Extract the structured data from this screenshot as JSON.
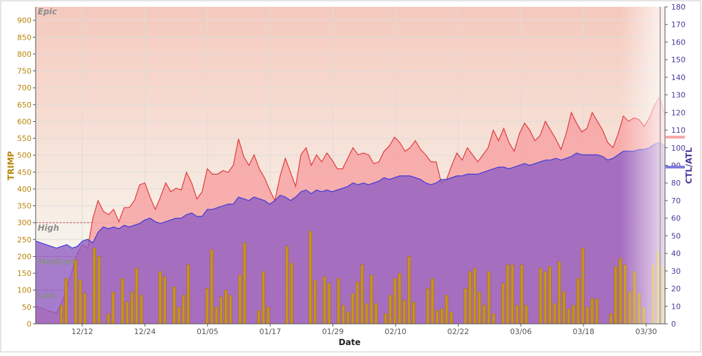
{
  "chart_data": {
    "type": "area",
    "xlabel": "Date",
    "ylabel_left": "TRIMP",
    "ylabel_right": "CTL/ATL",
    "ylim_left": [
      0,
      940
    ],
    "ylim_right": [
      0,
      180
    ],
    "yticks_left": [
      "0",
      "50",
      "100",
      "150",
      "200",
      "250",
      "300",
      "350",
      "400",
      "450",
      "500",
      "550",
      "600",
      "650",
      "700",
      "750",
      "800",
      "850",
      "900"
    ],
    "yticks_right": [
      "0",
      "10",
      "20",
      "30",
      "40",
      "50",
      "60",
      "70",
      "80",
      "90",
      "100",
      "110",
      "120",
      "130",
      "140",
      "150",
      "160",
      "170",
      "180"
    ],
    "x_ticks": [
      "12/12",
      "12/24",
      "01/05",
      "01/17",
      "01/29",
      "02/10",
      "02/22",
      "03/06",
      "03/18",
      "03/30"
    ],
    "grid": true,
    "zones": [
      {
        "label": "Epic",
        "value": 940
      },
      {
        "label": "High",
        "value": 300
      },
      {
        "label": "Medium",
        "value": 200
      },
      {
        "label": "Low",
        "value": 100
      }
    ],
    "right_axis_markers": [
      106,
      89
    ],
    "colors": {
      "atl_fill": "#f7a3a3",
      "atl_line": "#e03a3a",
      "ctl_fill": "#8f5cc4",
      "ctl_line": "#3a3ad8",
      "bar": "#c9931d",
      "bar_edge": "#9a6a08",
      "axis_left": "#b8860b",
      "axis_right": "#4b3b9b",
      "zone_line": "#d94b4b"
    },
    "series": [
      {
        "name": "ATL",
        "axis": "right",
        "values": [
          10,
          9,
          8,
          7,
          6,
          12,
          20,
          30,
          40,
          45,
          43,
          60,
          70,
          64,
          62,
          65,
          58,
          66,
          66,
          70,
          79,
          80,
          72,
          65,
          72,
          80,
          75,
          77,
          76,
          86,
          80,
          71,
          75,
          88,
          85,
          85,
          87,
          86,
          90,
          105,
          95,
          90,
          96,
          88,
          83,
          76,
          70,
          84,
          94,
          86,
          78,
          96,
          100,
          90,
          96,
          92,
          97,
          93,
          88,
          88,
          94,
          100,
          96,
          97,
          96,
          91,
          92,
          98,
          101,
          106,
          103,
          98,
          100,
          104,
          99,
          96,
          92,
          92,
          80,
          82,
          90,
          97,
          93,
          100,
          96,
          92,
          96,
          100,
          110,
          104,
          111,
          103,
          98,
          108,
          114,
          110,
          104,
          107,
          115,
          110,
          105,
          99,
          108,
          120,
          114,
          109,
          111,
          120,
          115,
          110,
          103,
          100,
          108,
          118,
          115,
          117,
          116,
          112,
          117,
          124,
          129,
          118
        ]
      },
      {
        "name": "CTL",
        "axis": "right",
        "values": [
          47,
          46,
          45,
          44,
          43,
          44,
          45,
          43,
          44,
          47,
          48,
          46,
          52,
          55,
          54,
          55,
          54,
          56,
          55,
          56,
          57,
          59,
          60,
          58,
          57,
          58,
          59,
          60,
          60,
          62,
          63,
          61,
          61,
          65,
          65,
          66,
          67,
          68,
          68,
          72,
          71,
          70,
          72,
          71,
          70,
          68,
          70,
          73,
          72,
          70,
          72,
          75,
          76,
          74,
          76,
          75,
          76,
          75,
          76,
          77,
          78,
          80,
          79,
          80,
          79,
          80,
          81,
          83,
          82,
          83,
          84,
          84,
          84,
          83,
          82,
          80,
          79,
          80,
          82,
          82,
          83,
          84,
          84,
          85,
          85,
          85,
          86,
          87,
          88,
          89,
          89,
          88,
          89,
          90,
          91,
          90,
          91,
          92,
          93,
          93,
          94,
          93,
          94,
          95,
          97,
          96,
          96,
          96,
          96,
          95,
          93,
          94,
          96,
          98,
          98,
          98,
          99,
          99,
          100,
          102,
          103,
          101
        ]
      }
    ],
    "bars": {
      "name": "TRIMP",
      "axis": "left",
      "values": [
        0,
        0,
        0,
        0,
        0,
        55,
        135,
        0,
        190,
        130,
        90,
        0,
        225,
        200,
        0,
        30,
        95,
        0,
        135,
        65,
        95,
        165,
        85,
        0,
        0,
        0,
        155,
        140,
        0,
        110,
        50,
        85,
        175,
        0,
        0,
        0,
        105,
        220,
        50,
        80,
        100,
        85,
        0,
        145,
        240,
        0,
        0,
        40,
        155,
        50,
        0,
        0,
        0,
        230,
        180,
        0,
        0,
        0,
        275,
        130,
        0,
        140,
        120,
        0,
        135,
        55,
        35,
        90,
        125,
        175,
        60,
        145,
        60,
        0,
        30,
        85,
        135,
        150,
        70,
        200,
        65,
        0,
        0,
        105,
        135,
        40,
        45,
        85,
        35,
        0,
        0,
        105,
        155,
        165,
        95,
        55,
        155,
        30,
        0,
        120,
        175,
        175,
        55,
        175,
        55,
        0,
        0,
        165,
        155,
        170,
        60,
        185,
        95,
        45,
        55,
        135,
        225,
        50,
        75,
        75,
        0,
        0,
        30,
        170,
        195,
        175,
        95,
        155,
        90,
        50,
        0,
        175,
        215,
        170
      ]
    }
  }
}
